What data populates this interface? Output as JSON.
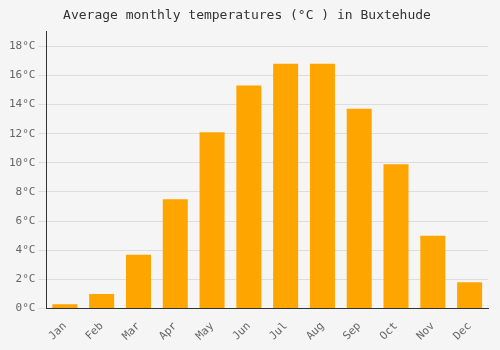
{
  "chart_data": {
    "type": "bar",
    "title": "Average monthly temperatures (°C ) in Buxtehude",
    "categories": [
      "Jan",
      "Feb",
      "Mar",
      "Apr",
      "May",
      "Jun",
      "Jul",
      "Aug",
      "Sep",
      "Oct",
      "Nov",
      "Dec"
    ],
    "values": [
      0.3,
      1.0,
      3.7,
      7.5,
      12.1,
      15.3,
      16.8,
      16.8,
      13.7,
      9.9,
      5.0,
      1.8
    ],
    "color": "#FFA500",
    "ylim": [
      0,
      19.0
    ],
    "yticks": [
      {
        "value": 0,
        "label": "0°C"
      },
      {
        "value": 2,
        "label": "2°C"
      },
      {
        "value": 4,
        "label": "4°C"
      },
      {
        "value": 6,
        "label": "6°C"
      },
      {
        "value": 8,
        "label": "8°C"
      },
      {
        "value": 10,
        "label": "10°C"
      },
      {
        "value": 12,
        "label": "12°C"
      },
      {
        "value": 14,
        "label": "14°C"
      },
      {
        "value": 16,
        "label": "16°C"
      },
      {
        "value": 18,
        "label": "18°C"
      }
    ],
    "grid": true
  }
}
